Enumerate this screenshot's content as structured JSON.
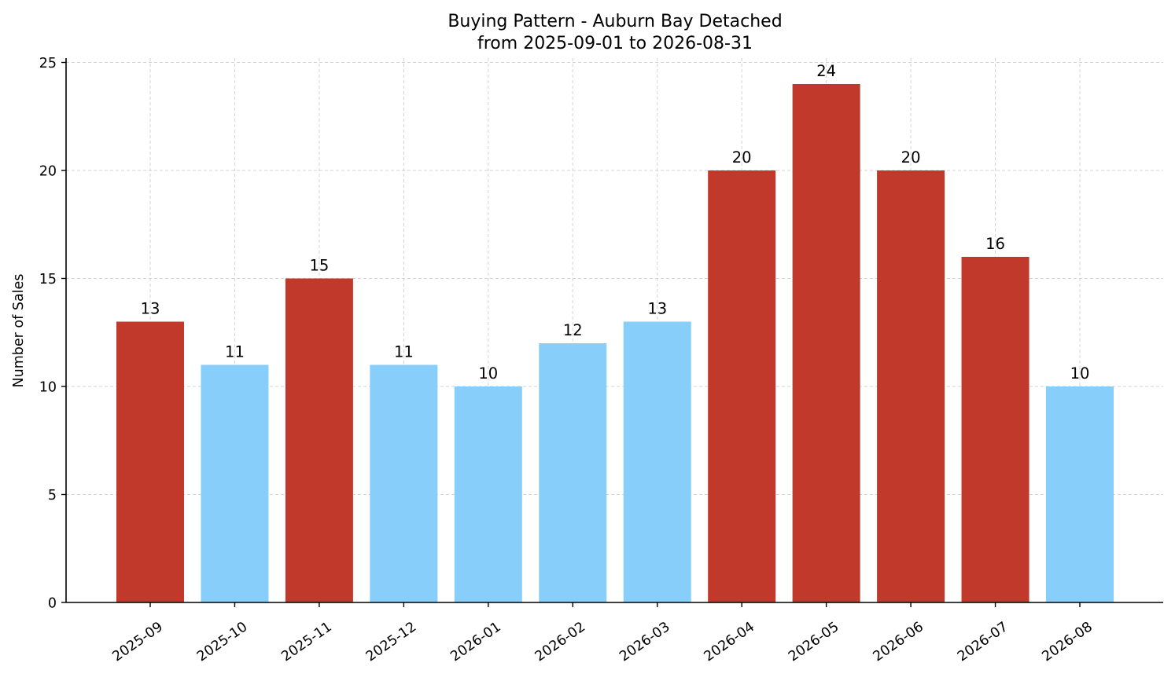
{
  "chart_data": {
    "type": "bar",
    "title": "Buying Pattern - Auburn Bay Detached",
    "subtitle": "from 2025-09-01 to 2026-08-31",
    "xlabel": "",
    "ylabel": "Number of Sales",
    "categories": [
      "2025-09",
      "2025-10",
      "2025-11",
      "2025-12",
      "2026-01",
      "2026-02",
      "2026-03",
      "2026-04",
      "2026-05",
      "2026-06",
      "2026-07",
      "2026-08"
    ],
    "values": [
      13,
      11,
      15,
      11,
      10,
      12,
      13,
      20,
      24,
      20,
      16,
      10
    ],
    "bar_colors": [
      "#c0392b",
      "#87cefa",
      "#c0392b",
      "#87cefa",
      "#87cefa",
      "#87cefa",
      "#87cefa",
      "#c0392b",
      "#c0392b",
      "#c0392b",
      "#c0392b",
      "#87cefa"
    ],
    "ylim": [
      0,
      25.2
    ],
    "yticks": [
      0,
      5,
      10,
      15,
      20,
      25
    ],
    "grid": true,
    "legend": "none"
  }
}
